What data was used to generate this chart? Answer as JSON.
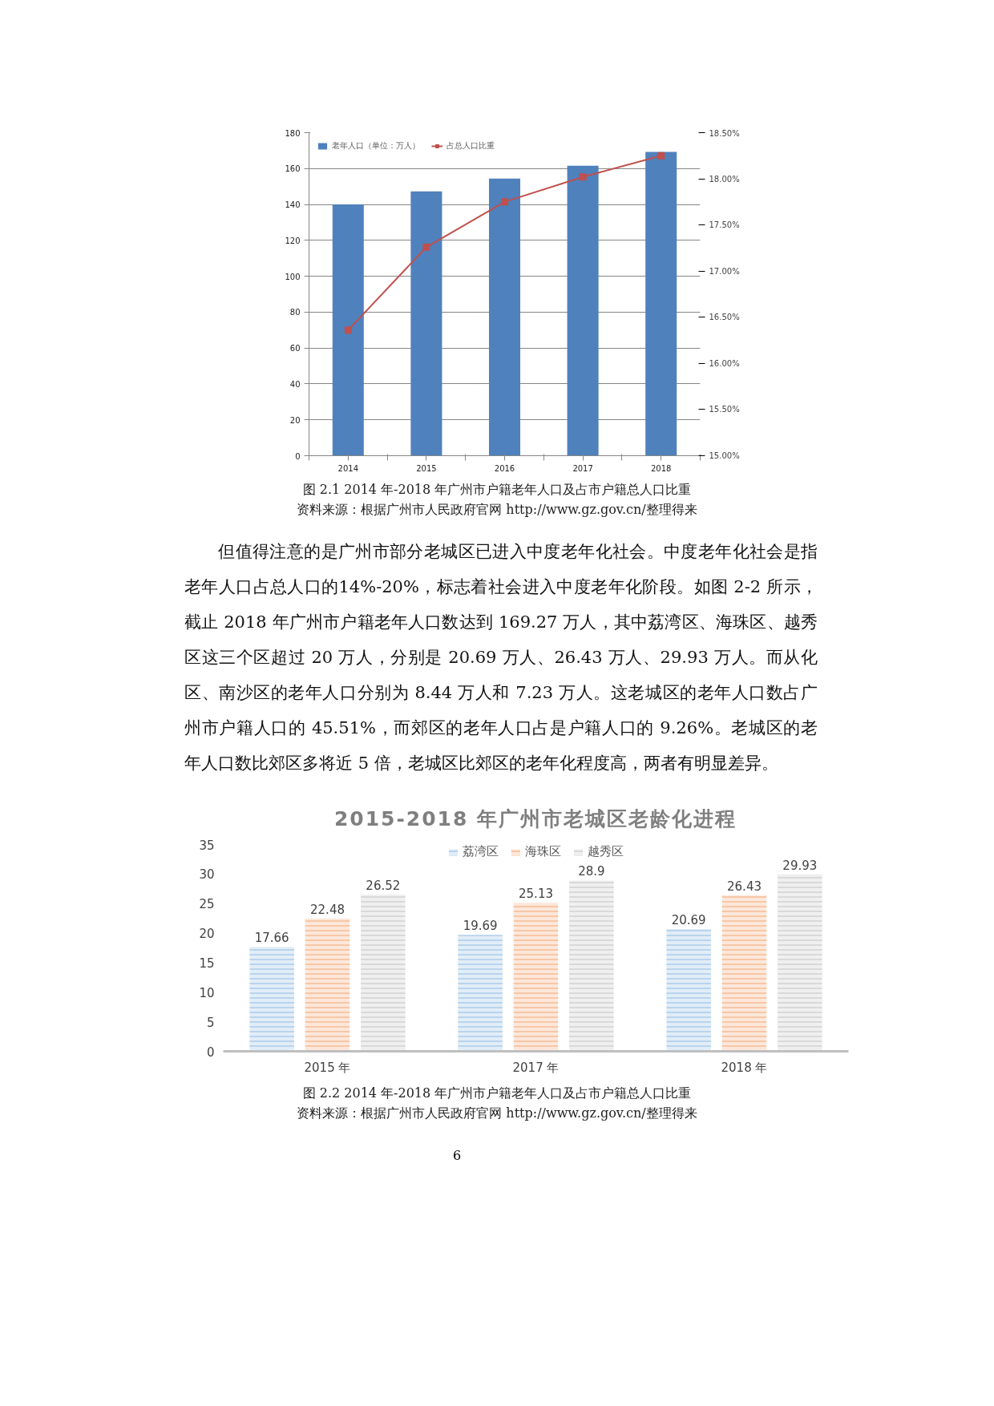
{
  "chart_data": [
    {
      "type": "bar",
      "categories": [
        "2014",
        "2015",
        "2016",
        "2017",
        "2018"
      ],
      "series": [
        {
          "name": "老年人口（单位：万人）",
          "color": "#4f81bd",
          "values": [
            140,
            147.3,
            154.4,
            161.6,
            169.3
          ]
        },
        {
          "name": "占总人口比重",
          "type": "line",
          "axis": "y2",
          "color": "#c0504d",
          "values": [
            16.36,
            17.26,
            17.75,
            18.02,
            18.25
          ]
        }
      ],
      "ylim": [
        0,
        180
      ],
      "yticks": [
        0,
        20,
        40,
        60,
        80,
        100,
        120,
        140,
        160,
        180
      ],
      "y2lim": [
        15,
        18.5
      ],
      "y2ticks": [
        {
          "value": 15,
          "label": "15.00%"
        },
        {
          "value": 15.5,
          "label": "15.50%"
        },
        {
          "value": 16,
          "label": "16.00%"
        },
        {
          "value": 16.5,
          "label": "16.50%"
        },
        {
          "value": 17,
          "label": "17.00%"
        },
        {
          "value": 17.5,
          "label": "17.50%"
        },
        {
          "value": 18,
          "label": "18.00%"
        },
        {
          "value": 18.5,
          "label": "18.50%"
        }
      ],
      "grid": "y",
      "legend": "top left",
      "marker": "square",
      "annotations": [
        "图 2.1 2014 年-2018 年广州市户籍老年人口及占市户籍总人口比重",
        "资料来源：根据广州市人民政府官网 http://www.gz.gov.cn/整理得来",
        "但值得注意的是广州市部分老城区已进入中度老年化社会。中度老年化社会是指老年人口占总人口的14%-20%，标志着社会进入中度老年化阶段。如图 2-2 所示，截止 2018 年广州市户籍老年人口数达到 169.27 万人，其中荔湾区、海珠区、越秀区这三个区超过 20 万人，分别是 20.69 万人、26.43 万人、29.93 万人。而从化区、南沙区的老年人口分别为 8.44 万人和 7.23 万人。这老城区的老年人口数占广州市户籍人口的 45.51%，而郊区的老年人口占是户籍人口的 9.26%。老城区的老年人口数比郊区多将近 5 倍，老城区比郊区的老年化程度高，两者有明显差异。"
      ]
    },
    {
      "type": "bar",
      "title": "2015-2018 年广州市老城区老龄化进程",
      "categories": [
        "2015 年",
        "2017 年",
        "2018 年"
      ],
      "series": [
        {
          "name": "荔湾区",
          "color": "#9dc3e6",
          "values": [
            17.66,
            19.69,
            20.69
          ]
        },
        {
          "name": "海珠区",
          "color": "#f4b183",
          "values": [
            22.48,
            25.13,
            26.43
          ]
        },
        {
          "name": "越秀区",
          "color": "#c9c9c9",
          "values": [
            26.52,
            28.9,
            29.93
          ]
        }
      ],
      "ylim": [
        0,
        35
      ],
      "yticks": [
        0,
        5,
        10,
        15,
        20,
        25,
        30,
        35
      ],
      "legend": "top",
      "data_labels": true,
      "annotations": [
        "图 2.2 2014 年-2018 年广州市户籍老年人口及占市户籍总人口比重",
        "资料来源：根据广州市人民政府官网 http://www.gz.gov.cn/整理得来",
        "6"
      ]
    }
  ]
}
